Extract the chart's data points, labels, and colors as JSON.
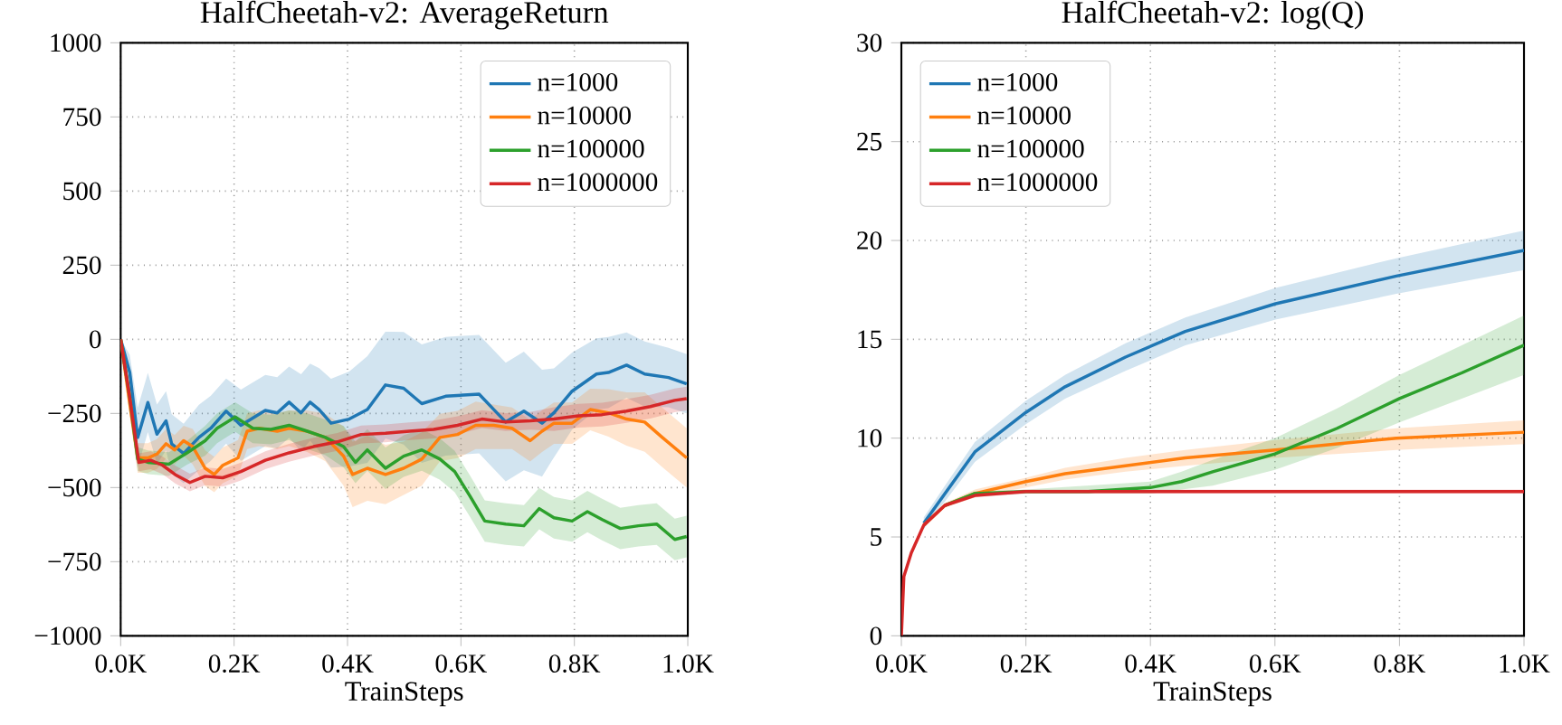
{
  "chart_data": [
    {
      "type": "line",
      "title": "HalfCheetah-v2: AverageReturn",
      "xlabel": "TrainSteps",
      "xlim": [
        0,
        1000
      ],
      "ylim": [
        -1000,
        1000
      ],
      "xticks": [
        {
          "value": 0,
          "label": "0.0K"
        },
        {
          "value": 200,
          "label": "0.2K"
        },
        {
          "value": 400,
          "label": "0.4K"
        },
        {
          "value": 600,
          "label": "0.6K"
        },
        {
          "value": 800,
          "label": "0.8K"
        },
        {
          "value": 1000,
          "label": "1.0K"
        }
      ],
      "yticks": [
        {
          "value": -1000,
          "label": "−1000"
        },
        {
          "value": -750,
          "label": "−750"
        },
        {
          "value": -500,
          "label": "−500"
        },
        {
          "value": -250,
          "label": "−250"
        },
        0,
        250,
        500,
        750,
        1000
      ],
      "grid": true,
      "legend": "top right",
      "line_style": "solid",
      "marker": "none",
      "series": [
        {
          "name": "n=1000",
          "color": "#1f77b4",
          "x": [
            0,
            16,
            30,
            48,
            64,
            80,
            90,
            111,
            138,
            159,
            186,
            212,
            255,
            276,
            297,
            318,
            334,
            350,
            371,
            403,
            435,
            467,
            499,
            531,
            573,
            632,
            658,
            679,
            711,
            743,
            764,
            796,
            839,
            860,
            892,
            924,
            966,
            998
          ],
          "values": [
            0,
            -112,
            -331,
            -213,
            -320,
            -275,
            -353,
            -385,
            -331,
            -300,
            -242,
            -290,
            -240,
            -248,
            -212,
            -248,
            -212,
            -237,
            -283,
            -269,
            -237,
            -154,
            -165,
            -217,
            -192,
            -185,
            -237,
            -279,
            -242,
            -283,
            -248,
            -175,
            -117,
            -112,
            -87,
            -117,
            -129,
            -150
          ],
          "lower": [
            0,
            -172,
            -431,
            -313,
            -420,
            -375,
            -453,
            -485,
            -441,
            -410,
            -352,
            -410,
            -360,
            -368,
            -332,
            -378,
            -342,
            -377,
            -433,
            -429,
            -417,
            -334,
            -355,
            -417,
            -392,
            -385,
            -437,
            -479,
            -442,
            -463,
            -398,
            -305,
            -237,
            -232,
            -197,
            -227,
            -229,
            -250
          ],
          "upper": [
            0,
            -52,
            -231,
            -113,
            -220,
            -175,
            -253,
            -285,
            -221,
            -190,
            -132,
            -170,
            -120,
            -128,
            -92,
            -118,
            -82,
            -97,
            -133,
            -109,
            -57,
            26,
            25,
            -17,
            8,
            15,
            -37,
            -79,
            -42,
            -103,
            -98,
            -45,
            3,
            8,
            23,
            -7,
            -29,
            -50
          ]
        },
        {
          "name": "n=10000",
          "color": "#ff7f0e",
          "x": [
            0,
            16,
            30,
            48,
            64,
            80,
            95,
            111,
            127,
            149,
            165,
            180,
            207,
            223,
            244,
            276,
            297,
            329,
            361,
            393,
            409,
            435,
            467,
            499,
            531,
            563,
            594,
            626,
            658,
            690,
            722,
            743,
            764,
            796,
            828,
            860,
            892,
            924,
            955,
            998
          ],
          "values": [
            0,
            -217,
            -400,
            -400,
            -387,
            -352,
            -373,
            -342,
            -362,
            -435,
            -456,
            -425,
            -400,
            -310,
            -300,
            -310,
            -300,
            -310,
            -331,
            -394,
            -456,
            -435,
            -456,
            -435,
            -404,
            -331,
            -321,
            -290,
            -290,
            -300,
            -342,
            -310,
            -283,
            -283,
            -237,
            -248,
            -269,
            -279,
            -331,
            -400
          ],
          "lower": [
            0,
            -257,
            -450,
            -450,
            -437,
            -402,
            -423,
            -392,
            -422,
            -495,
            -516,
            -485,
            -460,
            -370,
            -360,
            -370,
            -360,
            -380,
            -411,
            -494,
            -566,
            -545,
            -556,
            -525,
            -494,
            -411,
            -401,
            -370,
            null,
            -370,
            -412,
            -380,
            -353,
            -353,
            -307,
            -328,
            -359,
            -379,
            -431,
            -500
          ],
          "upper": [
            0,
            -177,
            -350,
            -350,
            -337,
            -302,
            -323,
            -292,
            -302,
            -375,
            -396,
            -365,
            -340,
            -250,
            -240,
            -250,
            -240,
            -240,
            -251,
            -294,
            -346,
            -325,
            -356,
            -345,
            -314,
            -251,
            -241,
            -210,
            null,
            -230,
            -272,
            -240,
            -213,
            -213,
            -167,
            -168,
            -179,
            -179,
            -231,
            -300
          ]
        },
        {
          "name": "n=100000",
          "color": "#2ca02c",
          "x": [
            0,
            16,
            30,
            48,
            85,
            117,
            149,
            170,
            202,
            233,
            265,
            297,
            329,
            361,
            393,
            414,
            435,
            467,
            499,
            531,
            563,
            589,
            616,
            642,
            679,
            711,
            738,
            764,
            796,
            823,
            849,
            881,
            913,
            945,
            977,
            998
          ],
          "values": [
            0,
            -196,
            -404,
            -415,
            -421,
            -383,
            -342,
            -300,
            -262,
            -300,
            -304,
            -290,
            -310,
            -331,
            -362,
            -415,
            -373,
            -435,
            -394,
            -373,
            -404,
            -446,
            -529,
            -613,
            -623,
            -629,
            -571,
            -602,
            -613,
            -581,
            -608,
            -638,
            -629,
            -623,
            -675,
            -665
          ],
          "lower": [
            0,
            -236,
            -444,
            -455,
            -461,
            -423,
            -392,
            -350,
            -312,
            -350,
            -354,
            -340,
            -370,
            -391,
            -432,
            -485,
            -443,
            -505,
            -464,
            -443,
            -474,
            -516,
            -599,
            -683,
            -693,
            -699,
            -641,
            -672,
            -683,
            -651,
            -678,
            -708,
            -699,
            -693,
            -745,
            -735
          ],
          "upper": [
            0,
            -156,
            -364,
            -375,
            -381,
            -343,
            -292,
            -250,
            -212,
            -250,
            -254,
            -240,
            -250,
            -271,
            -292,
            -345,
            -303,
            -365,
            -324,
            -303,
            -334,
            -376,
            -459,
            -543,
            -553,
            -559,
            -501,
            -532,
            -543,
            -511,
            -538,
            -568,
            -559,
            -553,
            -605,
            -595
          ]
        },
        {
          "name": "n=1000000",
          "color": "#d62728",
          "x": [
            0,
            16,
            32,
            53,
            74,
            96,
            122,
            149,
            180,
            212,
            255,
            297,
            340,
            382,
            424,
            467,
            509,
            552,
            594,
            637,
            679,
            722,
            764,
            807,
            849,
            892,
            934,
            977,
            998
          ],
          "values": [
            0,
            -196,
            -415,
            -408,
            -425,
            -456,
            -483,
            -462,
            -467,
            -446,
            -408,
            -383,
            -362,
            -346,
            -321,
            -317,
            -310,
            -304,
            -290,
            -269,
            -279,
            -275,
            -269,
            -258,
            -254,
            -242,
            -227,
            -206,
            -200
          ],
          "lower": [
            0,
            -226,
            -445,
            -438,
            -455,
            -486,
            -513,
            -492,
            -497,
            -476,
            -438,
            -413,
            -392,
            -376,
            -351,
            -347,
            -340,
            -334,
            -320,
            -299,
            -309,
            -305,
            -309,
            -298,
            -294,
            -282,
            -267,
            -246,
            -240
          ],
          "upper": [
            0,
            -166,
            -385,
            -378,
            -395,
            -426,
            -453,
            -432,
            -437,
            -416,
            -378,
            -353,
            -332,
            -316,
            -291,
            -287,
            -280,
            -274,
            -260,
            -239,
            -249,
            -245,
            -229,
            -218,
            -214,
            -202,
            -187,
            -166,
            -160
          ]
        }
      ]
    },
    {
      "type": "line",
      "title": "HalfCheetah-v2: log(Q)",
      "xlabel": "TrainSteps",
      "xlim": [
        0,
        1000
      ],
      "ylim": [
        0,
        30
      ],
      "xticks": [
        {
          "value": 0,
          "label": "0.0K"
        },
        {
          "value": 200,
          "label": "0.2K"
        },
        {
          "value": 400,
          "label": "0.4K"
        },
        {
          "value": 600,
          "label": "0.6K"
        },
        {
          "value": 800,
          "label": "0.8K"
        },
        {
          "value": 1000,
          "label": "1.0K"
        }
      ],
      "yticks": [
        0,
        5,
        10,
        15,
        20,
        25,
        30
      ],
      "grid": true,
      "legend": "top left",
      "line_style": "solid",
      "marker": "none",
      "series": [
        {
          "name": "n=1000",
          "color": "#1f77b4",
          "x": [
            36,
            70,
            118,
            200,
            263,
            360,
            456,
            601,
            795,
            1000
          ],
          "values": [
            5.7,
            7.2,
            9.3,
            11.3,
            12.6,
            14.1,
            15.4,
            16.8,
            18.2,
            19.5
          ],
          "lower": [
            5.4,
            6.8,
            8.8,
            10.7,
            12.0,
            13.4,
            14.7,
            16.0,
            17.3,
            18.5
          ],
          "upper": [
            6.0,
            7.6,
            9.8,
            11.9,
            13.2,
            14.8,
            16.1,
            17.6,
            19.1,
            20.5
          ]
        },
        {
          "name": "n=10000",
          "color": "#ff7f0e",
          "x": [
            36,
            70,
            118,
            200,
            263,
            360,
            456,
            601,
            795,
            1000
          ],
          "values": [
            5.6,
            6.6,
            7.2,
            7.8,
            8.2,
            8.6,
            9.0,
            9.4,
            10.0,
            10.3
          ],
          "lower": [
            5.5,
            6.5,
            7.0,
            7.5,
            7.9,
            8.3,
            8.6,
            9.0,
            9.4,
            9.7
          ],
          "upper": [
            5.7,
            6.7,
            7.4,
            8.0,
            8.5,
            9.0,
            9.4,
            9.9,
            10.5,
            10.9
          ]
        },
        {
          "name": "n=100000",
          "color": "#2ca02c",
          "x": [
            70,
            118,
            200,
            300,
            400,
            450,
            500,
            600,
            700,
            800,
            900,
            1000
          ],
          "values": [
            6.6,
            7.2,
            7.3,
            7.3,
            7.5,
            7.8,
            8.3,
            9.2,
            10.5,
            12.0,
            13.3,
            14.7
          ],
          "lower": [
            6.5,
            7.1,
            7.2,
            null,
            7.2,
            7.4,
            7.6,
            8.4,
            9.5,
            10.8,
            12.0,
            13.2
          ],
          "upper": [
            6.7,
            7.3,
            7.4,
            null,
            7.8,
            8.3,
            8.9,
            10.0,
            11.5,
            13.2,
            14.7,
            16.2
          ]
        },
        {
          "name": "n=1000000",
          "color": "#d62728",
          "x": [
            0,
            4,
            16,
            36,
            70,
            118,
            200,
            400,
            1000
          ],
          "values": [
            0,
            3.0,
            4.2,
            5.6,
            6.6,
            7.1,
            7.3,
            7.3,
            7.3
          ],
          "lower": [
            0,
            2.9,
            4.1,
            5.5,
            6.5,
            7.0,
            7.2,
            7.2,
            7.2
          ],
          "upper": [
            0,
            3.1,
            4.3,
            5.7,
            6.7,
            7.2,
            7.4,
            7.4,
            7.4
          ]
        }
      ]
    }
  ]
}
